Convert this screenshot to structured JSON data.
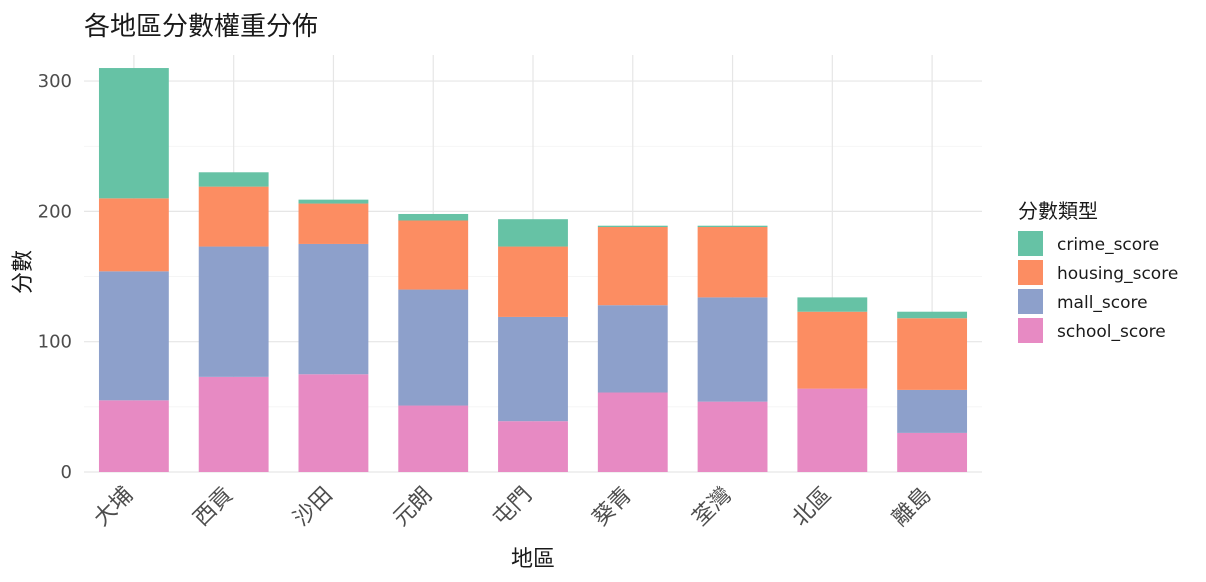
{
  "chart_data": {
    "type": "bar",
    "stacked": true,
    "title": "各地區分數權重分佈",
    "xlabel": "地區",
    "ylabel": "分數",
    "categories": [
      "大埔",
      "西貢",
      "沙田",
      "元朗",
      "屯門",
      "葵青",
      "荃灣",
      "北區",
      "離島"
    ],
    "series": [
      {
        "name": "school_score",
        "color": "#e78ac3",
        "values": [
          55,
          73,
          75,
          51,
          39,
          61,
          54,
          64,
          30
        ]
      },
      {
        "name": "mall_score",
        "color": "#8da0cb",
        "values": [
          99,
          100,
          100,
          89,
          80,
          67,
          80,
          0,
          33
        ]
      },
      {
        "name": "housing_score",
        "color": "#fc8d62",
        "values": [
          56,
          46,
          31,
          53,
          54,
          60,
          54,
          59,
          55
        ]
      },
      {
        "name": "crime_score",
        "color": "#66c2a5",
        "values": [
          100,
          11,
          3,
          5,
          21,
          1,
          1,
          11,
          5
        ]
      }
    ],
    "legend_order": [
      "crime_score",
      "housing_score",
      "mall_score",
      "school_score"
    ],
    "legend_title": "分數類型",
    "legend_position": "right",
    "ylim": [
      0,
      320
    ],
    "yticks": [
      0,
      100,
      200,
      300
    ],
    "grid": true
  }
}
